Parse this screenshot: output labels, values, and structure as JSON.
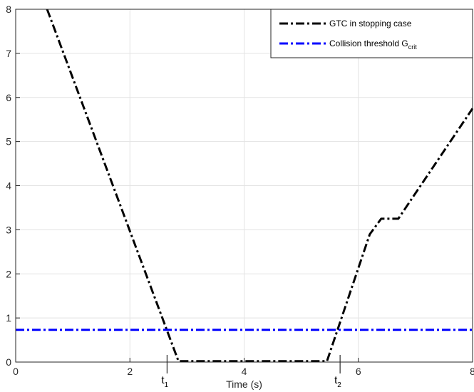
{
  "chart_data": {
    "type": "line",
    "title": "",
    "xlabel": "Time (s)",
    "ylabel": "",
    "xlim": [
      0,
      8
    ],
    "ylim": [
      0,
      8
    ],
    "xticks": [
      0,
      2,
      4,
      6,
      8
    ],
    "yticks": [
      0,
      1,
      2,
      3,
      4,
      5,
      6,
      7,
      8
    ],
    "grid": true,
    "legend_position": "top-right",
    "series": [
      {
        "name": "GTC in stopping case",
        "color": "#000000",
        "style": "dash-dot",
        "x": [
          0.55,
          2.85,
          5.45,
          6.2,
          6.4,
          6.7,
          8.0
        ],
        "y": [
          8.0,
          0.02,
          0.02,
          2.9,
          3.25,
          3.25,
          5.75
        ]
      },
      {
        "name": "Collision threshold G",
        "name_subscript": "crit",
        "color": "#0000ff",
        "style": "dash-dot",
        "x": [
          0,
          8
        ],
        "y": [
          0.73,
          0.73
        ]
      }
    ],
    "annotations": [
      {
        "label": "t",
        "subscript": "1",
        "x": 2.65
      },
      {
        "label": "t",
        "subscript": "2",
        "x": 5.68
      }
    ]
  }
}
